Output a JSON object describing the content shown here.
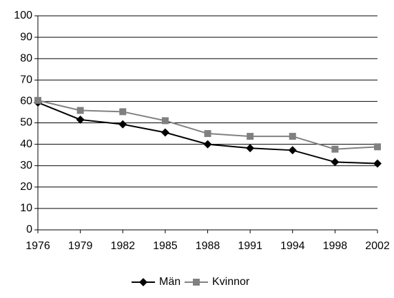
{
  "chart_data": {
    "type": "line",
    "categories": [
      "1976",
      "1979",
      "1982",
      "1985",
      "1988",
      "1991",
      "1994",
      "1998",
      "2002"
    ],
    "series": [
      {
        "name": "Män",
        "color": "#000000",
        "marker": "diamond",
        "values": [
          59.5,
          51.5,
          49.3,
          45.5,
          40,
          38.2,
          37.2,
          31.7,
          31
        ]
      },
      {
        "name": "Kvinnor",
        "color": "#808080",
        "marker": "square",
        "values": [
          60.5,
          55.8,
          55.2,
          51,
          45,
          43.7,
          43.7,
          37.7,
          38.8
        ]
      }
    ],
    "ylim": [
      0,
      100
    ],
    "yticks": [
      0,
      10,
      20,
      30,
      40,
      50,
      60,
      70,
      80,
      90,
      100
    ],
    "grid": true,
    "legend": "bottom"
  }
}
